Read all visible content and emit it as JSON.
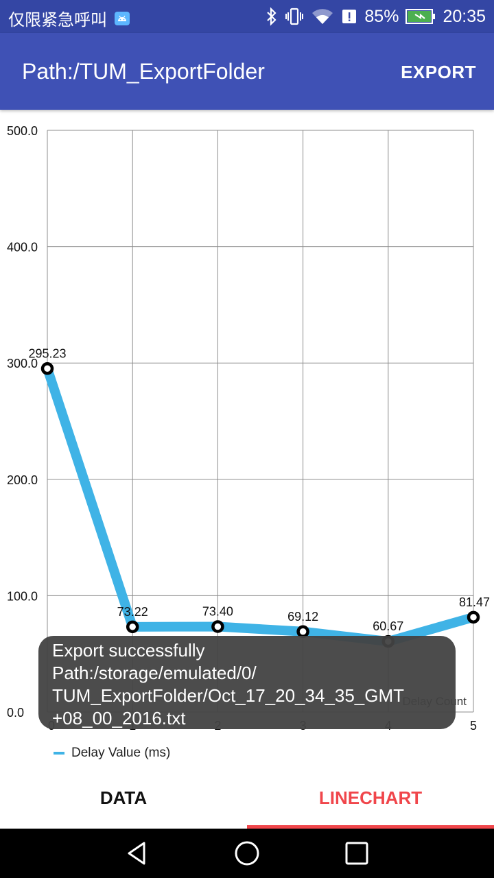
{
  "status_bar": {
    "carrier_text": "仅限紧急呼叫",
    "battery_percent": "85%",
    "time": "20:35",
    "icons": [
      "android-icon",
      "bluetooth-icon",
      "vibrate-icon",
      "wifi-icon",
      "data-saver-icon",
      "battery-charging-icon"
    ]
  },
  "app_bar": {
    "title": "Path:/TUM_ExportFolder",
    "export_label": "EXPORT",
    "color": "#3f51b5"
  },
  "chart_data": {
    "type": "line",
    "x": [
      0,
      1,
      2,
      3,
      4,
      5
    ],
    "series": [
      {
        "name": "Delay Value (ms)",
        "values": [
          295.23,
          73.22,
          73.4,
          69.12,
          60.67,
          81.47
        ],
        "color": "#3fb3e6"
      }
    ],
    "data_labels": [
      "295.23",
      "73.22",
      "73.40",
      "69.12",
      "60.67",
      "81.47"
    ],
    "y_ticks": [
      "0.0",
      "100.0",
      "200.0",
      "300.0",
      "400.0",
      "500.0"
    ],
    "x_ticks": [
      "0",
      "1",
      "2",
      "3",
      "4",
      "5"
    ],
    "xlabel": "Delay Count",
    "ylim": [
      0,
      500
    ],
    "xlim": [
      0,
      5
    ],
    "grid": true,
    "legend_position": "bottom-left"
  },
  "toast": {
    "lines": [
      "Export successfully",
      "Path:/storage/emulated/0/",
      "TUM_ExportFolder/Oct_17_20_34_35_GMT",
      "+08_00_2016.txt"
    ]
  },
  "tabs": [
    {
      "label": "DATA",
      "selected": false
    },
    {
      "label": "LINECHART",
      "selected": true,
      "color": "#f0464b"
    }
  ],
  "nav_bar": {
    "icons": [
      "back-icon",
      "home-icon",
      "recents-icon"
    ]
  }
}
